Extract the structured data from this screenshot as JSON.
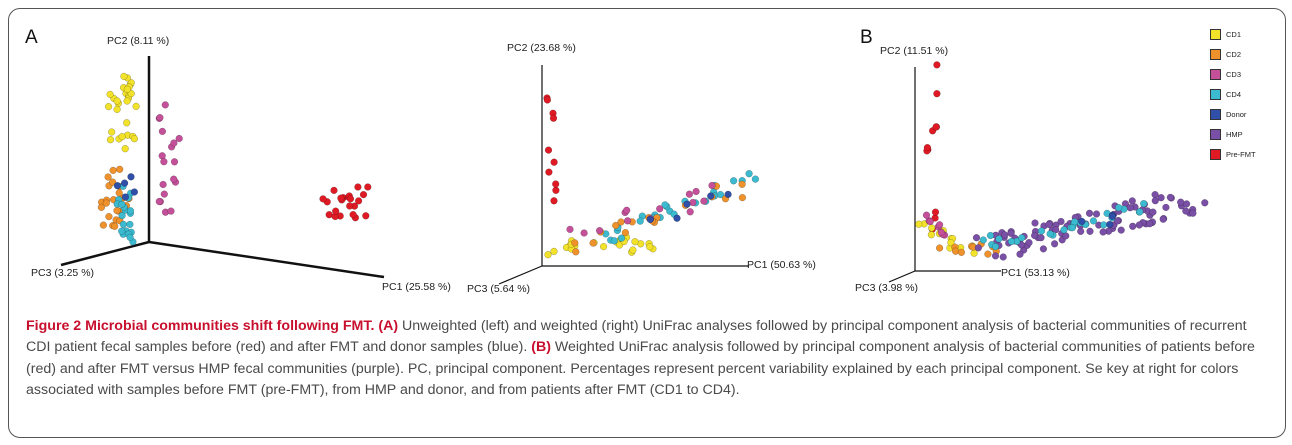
{
  "figure": {
    "panel_a_letter": "A",
    "panel_b_letter": "B"
  },
  "legend": {
    "items": [
      {
        "label": "CD1",
        "color": "#f2e22a"
      },
      {
        "label": "CD2",
        "color": "#f0922c"
      },
      {
        "label": "CD3",
        "color": "#c4509a"
      },
      {
        "label": "CD4",
        "color": "#3bbad0"
      },
      {
        "label": "Donor",
        "color": "#2f4fa8"
      },
      {
        "label": "HMP",
        "color": "#7a4fa6"
      },
      {
        "label": "Pre-FMT",
        "color": "#e01a24"
      }
    ]
  },
  "chart_data": [
    {
      "type": "scatter",
      "panel": "A (left) — unweighted UniFrac PCoA",
      "axes": {
        "x": "PC1 (25.58 %)",
        "y": "PC2 (8.11 %)",
        "z": "PC3 (3.25 %)"
      },
      "series": [
        {
          "name": "CD1",
          "color": "#f2e22a"
        },
        {
          "name": "CD2",
          "color": "#f0922c"
        },
        {
          "name": "CD3",
          "color": "#c4509a"
        },
        {
          "name": "CD4",
          "color": "#3bbad0"
        },
        {
          "name": "Donor",
          "color": "#2f4fa8"
        },
        {
          "name": "Pre-FMT",
          "color": "#e01a24"
        }
      ]
    },
    {
      "type": "scatter",
      "panel": "A (right) — weighted UniFrac PCoA",
      "axes": {
        "x": "PC1 (50.63 %)",
        "y": "PC2 (23.68 %)",
        "z": "PC3 (5.64 %)"
      },
      "series": [
        {
          "name": "CD1",
          "color": "#f2e22a"
        },
        {
          "name": "CD2",
          "color": "#f0922c"
        },
        {
          "name": "CD3",
          "color": "#c4509a"
        },
        {
          "name": "CD4",
          "color": "#3bbad0"
        },
        {
          "name": "Donor",
          "color": "#2f4fa8"
        },
        {
          "name": "Pre-FMT",
          "color": "#e01a24"
        }
      ]
    },
    {
      "type": "scatter",
      "panel": "B — weighted UniFrac PCoA with HMP",
      "axes": {
        "x": "PC1 (53.13 %)",
        "y": "PC2 (11.51 %)",
        "z": "PC3 (3.98 %)"
      },
      "series": [
        {
          "name": "CD1",
          "color": "#f2e22a"
        },
        {
          "name": "CD2",
          "color": "#f0922c"
        },
        {
          "name": "CD3",
          "color": "#c4509a"
        },
        {
          "name": "CD4",
          "color": "#3bbad0"
        },
        {
          "name": "Donor",
          "color": "#2f4fa8"
        },
        {
          "name": "HMP",
          "color": "#7a4fa6"
        },
        {
          "name": "Pre-FMT",
          "color": "#e01a24"
        }
      ]
    }
  ],
  "caption": {
    "heading": "Figure 2 Microbial communities shift following FMT.",
    "a_tag": "(A)",
    "a_text": " Unweighted (left) and weighted (right) UniFrac analyses followed by principal component analysis of bacterial communities of recurrent CDI patient fecal samples before (red) and after FMT and donor samples (blue). ",
    "b_tag": "(B)",
    "b_text": " Weighted UniFrac analysis followed by principal component analysis of bacterial communities of patients before (red) and after FMT versus HMP fecal communities (purple). PC, principal component. Percentages represent percent variability explained by each principal component. Se key at right for colors associated with samples before FMT (pre-FMT), from HMP and donor, and from patients after FMT (CD1 to CD4)."
  }
}
